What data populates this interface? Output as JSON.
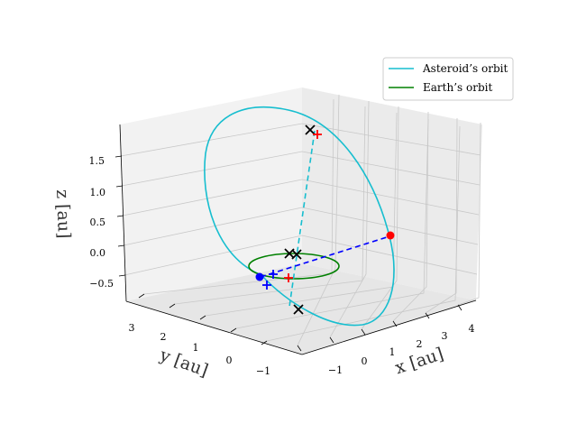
{
  "chart_data": {
    "type": "line",
    "projection": "3d",
    "xlabel": "x [au]",
    "ylabel": "y [au]",
    "zlabel": "z [au]",
    "x_ticks": [
      "−1",
      "0",
      "1",
      "2",
      "3",
      "4"
    ],
    "y_ticks": [
      "−1",
      "0",
      "1",
      "2",
      "3"
    ],
    "z_ticks": [
      "−0.5",
      "0.0",
      "0.5",
      "1.0",
      "1.5"
    ],
    "xlim": [
      -1.6,
      4.6
    ],
    "ylim": [
      -1.6,
      3.4
    ],
    "zlim": [
      -0.8,
      1.9
    ],
    "grid": true,
    "legend_position": "top-right",
    "series": [
      {
        "name": "Asteroid’s orbit",
        "color": "#17becf",
        "style": "solid",
        "kind": "ellipse",
        "semi_major_au": 2.6,
        "eccentricity": 0.6,
        "inclination_deg": 45,
        "ascending_node_deg": 15,
        "arg_perihelion_deg": 160
      },
      {
        "name": "Earth’s orbit",
        "color": "#008000",
        "style": "solid",
        "kind": "circle",
        "radius_au": 1.0
      }
    ],
    "markers": [
      {
        "kind": "planet",
        "color": "#0000ff",
        "x": 0.94,
        "y": -0.34,
        "z": 0.0
      },
      {
        "kind": "asteroid",
        "color": "#ff0000",
        "x": 3.9,
        "y": 1.4,
        "z": 0.0
      },
      {
        "kind": "node",
        "symbol": "x",
        "color": "#000000",
        "x": 0.7,
        "y": 0.2,
        "z": 1.69
      },
      {
        "kind": "node",
        "symbol": "x",
        "color": "#000000",
        "x": 1.6,
        "y": -1.4,
        "z": -1.0
      },
      {
        "kind": "node",
        "symbol": "x",
        "color": "#000000",
        "x": 0.3,
        "y": 0.05,
        "z": 0.0
      },
      {
        "kind": "node",
        "symbol": "x",
        "color": "#000000",
        "x": 0.4,
        "y": 0.15,
        "z": 0.0
      },
      {
        "kind": "node",
        "symbol": "+",
        "color": "#ff0000",
        "x": 0.78,
        "y": 0.18,
        "z": 1.69
      },
      {
        "kind": "node",
        "symbol": "+",
        "color": "#ff0000",
        "x": 1.5,
        "y": 0.0,
        "z": -0.22
      },
      {
        "kind": "node",
        "symbol": "+",
        "color": "#0000ff",
        "x": 1.0,
        "y": -0.75,
        "z": -0.1
      },
      {
        "kind": "node",
        "symbol": "+",
        "color": "#0000ff",
        "x": 1.15,
        "y": -0.4,
        "z": 0.0
      }
    ],
    "dashed_lines": [
      {
        "color": "#17becf",
        "from": [
          0.7,
          0.2,
          1.69
        ],
        "to": [
          1.6,
          -1.4,
          -1.0
        ]
      },
      {
        "color": "#0000ff",
        "from": [
          0.94,
          -0.34,
          0.0
        ],
        "to": [
          3.9,
          1.4,
          0.0
        ]
      }
    ],
    "legend": [
      {
        "label": "Asteroid’s orbit",
        "color": "#17becf"
      },
      {
        "label": "Earth’s orbit",
        "color": "#008000"
      }
    ]
  }
}
